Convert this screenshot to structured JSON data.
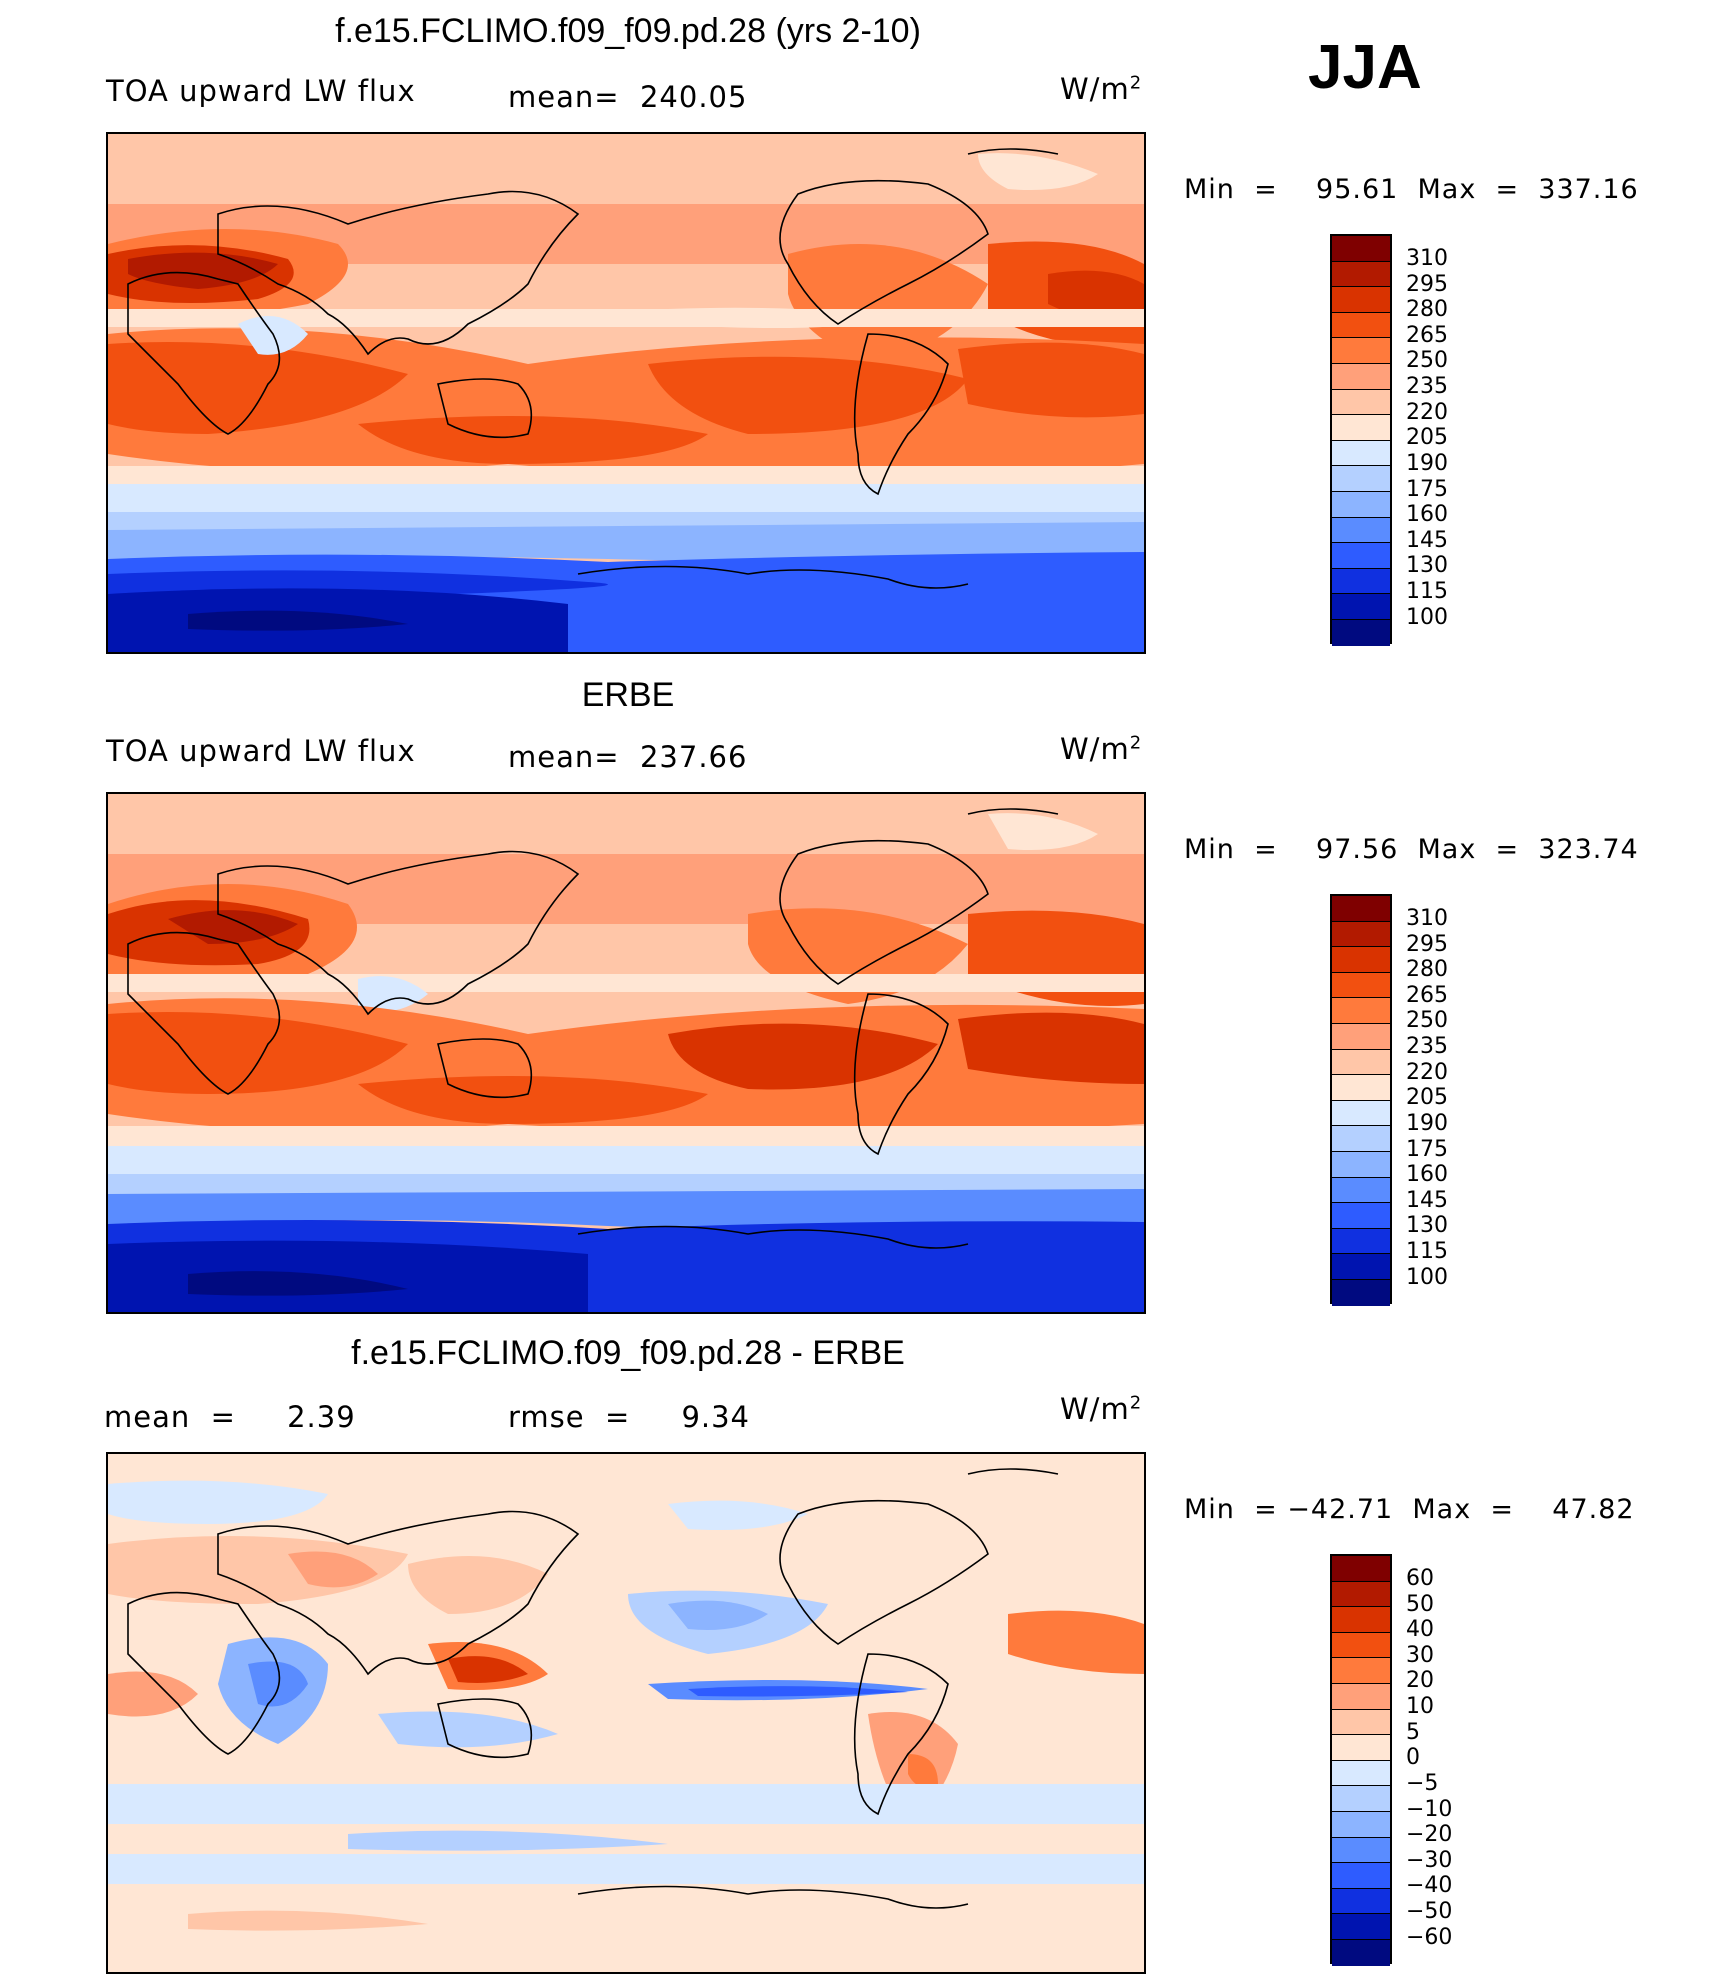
{
  "season": "JJA",
  "panels": [
    {
      "title": "f.e15.FCLIMO.f09_f09.pd.28 (yrs 2-10)",
      "left_label": "TOA upward LW flux",
      "center_label": "mean=  240.05",
      "units_base": "W/m",
      "units_exp": "2",
      "minmax": "Min  =    95.61  Max  =  337.16",
      "colorbar_labels": [
        "310",
        "295",
        "280",
        "265",
        "250",
        "235",
        "220",
        "205",
        "190",
        "175",
        "160",
        "145",
        "130",
        "115",
        "100"
      ]
    },
    {
      "title": "ERBE",
      "left_label": "TOA upward LW flux",
      "center_label": "mean=  237.66",
      "units_base": "W/m",
      "units_exp": "2",
      "minmax": "Min  =    97.56  Max  =  323.74",
      "colorbar_labels": [
        "310",
        "295",
        "280",
        "265",
        "250",
        "235",
        "220",
        "205",
        "190",
        "175",
        "160",
        "145",
        "130",
        "115",
        "100"
      ]
    },
    {
      "title": "f.e15.FCLIMO.f09_f09.pd.28 - ERBE",
      "left_label": "mean  =     2.39",
      "center_label": "rmse  =     9.34",
      "units_base": "W/m",
      "units_exp": "2",
      "minmax": "Min  = −42.71  Max  =    47.82",
      "colorbar_labels": [
        "60",
        "50",
        "40",
        "30",
        "20",
        "10",
        "5",
        "0",
        "−5",
        "−10",
        "−20",
        "−30",
        "−40",
        "−50",
        "−60"
      ]
    }
  ],
  "colors": {
    "scale": [
      "#7f0000",
      "#b21a00",
      "#d93300",
      "#f25010",
      "#ff7a3c",
      "#ffa07a",
      "#ffc6a8",
      "#ffe6d4",
      "#d8e9ff",
      "#b4d0ff",
      "#8cb4ff",
      "#5a8cff",
      "#2e5cff",
      "#1030e0",
      "#0014b0",
      "#000a80"
    ],
    "land_outline": "#000000"
  }
}
